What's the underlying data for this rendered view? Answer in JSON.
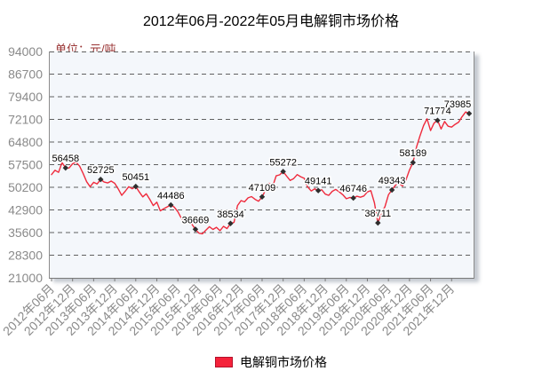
{
  "chart_data": {
    "type": "line",
    "title": "2012年06月-2022年05月电解铜市场价格",
    "unit_label": "单位：元/吨",
    "legend": [
      {
        "label": "电解铜市场价格",
        "color": "#f5223a"
      }
    ],
    "y_axis": {
      "min": 21000,
      "max": 94000,
      "tick_step": 7300,
      "ticks": [
        94000,
        86700,
        79400,
        72100,
        64800,
        57500,
        50200,
        42900,
        35600,
        28300,
        21000
      ]
    },
    "x_axis": {
      "tick_every_n_points": 6,
      "tick_labels": [
        "2012年06月",
        "2012年12月",
        "2013年06月",
        "2013年12月",
        "2014年06月",
        "2014年12月",
        "2015年06月",
        "2015年12月",
        "2016年06月",
        "2016年12月",
        "2017年06月",
        "2017年12月",
        "2018年06月",
        "2018年12月",
        "2019年06月",
        "2019年12月",
        "2020年06月",
        "2020年12月",
        "2021年06月",
        "2021年12月"
      ]
    },
    "series": [
      {
        "name": "电解铜市场价格",
        "color": "#ef2b3d",
        "start_month": "2012-06",
        "end_month": "2022-05",
        "values": [
          54300,
          55700,
          55000,
          58200,
          56458,
          56400,
          57800,
          58300,
          57000,
          54700,
          52000,
          50400,
          51800,
          51300,
          52725,
          51900,
          51600,
          52200,
          51500,
          49700,
          47600,
          48900,
          50400,
          49700,
          50451,
          48700,
          47100,
          48100,
          46300,
          44300,
          45400,
          42600,
          43300,
          43900,
          44486,
          43800,
          42300,
          40200,
          38600,
          39800,
          38300,
          36669,
          35400,
          35200,
          36400,
          37500,
          36600,
          37300,
          36200,
          37600,
          36900,
          38534,
          38900,
          44300,
          45900,
          45500,
          46800,
          47200,
          46300,
          45700,
          47109,
          49300,
          51500,
          50400,
          53900,
          54200,
          55272,
          53800,
          52400,
          53000,
          54300,
          53600,
          53100,
          50300,
          49000,
          49700,
          49141,
          49400,
          48000,
          47600,
          48900,
          49500,
          48700,
          47800,
          46500,
          46900,
          46746,
          47300,
          47000,
          47400,
          48700,
          49100,
          45200,
          38711,
          41900,
          43900,
          47800,
          49343,
          50900,
          51400,
          50600,
          52600,
          55800,
          58189,
          63200,
          66800,
          70100,
          72300,
          68500,
          70900,
          71774,
          69000,
          71400,
          69900,
          69600,
          70500,
          71200,
          73000,
          74500,
          73985
        ]
      }
    ],
    "labeled_points": [
      {
        "index": 4,
        "value": 56458
      },
      {
        "index": 14,
        "value": 52725
      },
      {
        "index": 24,
        "value": 50451
      },
      {
        "index": 34,
        "value": 44486
      },
      {
        "index": 41,
        "value": 36669
      },
      {
        "index": 51,
        "value": 38534
      },
      {
        "index": 60,
        "value": 47109
      },
      {
        "index": 66,
        "value": 55272
      },
      {
        "index": 76,
        "value": 49141
      },
      {
        "index": 86,
        "value": 46746
      },
      {
        "index": 93,
        "value": 38711
      },
      {
        "index": 97,
        "value": 49343
      },
      {
        "index": 103,
        "value": 58189
      },
      {
        "index": 110,
        "value": 71774
      },
      {
        "index": 119,
        "value": 73985
      }
    ],
    "grid": {
      "horizontal_dashed": true,
      "vertical": false
    },
    "colors": {
      "line": "#ef2b3d",
      "marker": "#2e2e2e",
      "grid": "#606060",
      "axis_labels": "#8a8a8a",
      "point_labels": "#000000",
      "point_label_halo": "#ffffff",
      "unit_label": "#993333",
      "plot_background": "#f4f7fb",
      "plot_border": "#8c8c8c",
      "legend_swatch": "#f5223a"
    }
  }
}
